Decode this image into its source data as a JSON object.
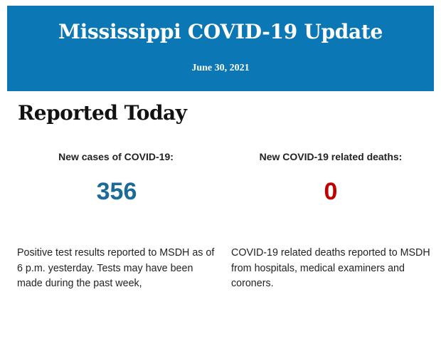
{
  "banner": {
    "title": "Mississippi COVID-19 Update",
    "date": "June 30, 2021",
    "background_color": "#0b77b4"
  },
  "section": {
    "heading": "Reported Today"
  },
  "cases": {
    "label": "New cases of COVID-19:",
    "value": "356",
    "color": "#1c6a98",
    "description": "Positive test results reported to MSDH as of 6 p.m. yesterday. Tests may have been made during the past week,"
  },
  "deaths": {
    "label": "New COVID-19 related deaths:",
    "value": "0",
    "color": "#c00000",
    "description": "COVID-19 related deaths reported to MSDH from hospitals, medical examiners and coroners."
  }
}
